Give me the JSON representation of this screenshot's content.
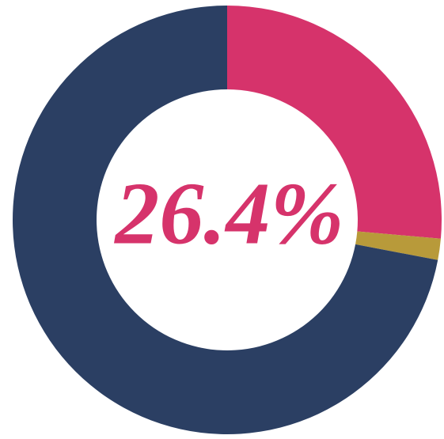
{
  "chart_data": {
    "type": "donut",
    "categories": [
      null,
      null,
      null
    ],
    "values": [
      26.4,
      1.6,
      72.0
    ],
    "value_labels": [
      "26.4%",
      null,
      null
    ],
    "colors": [
      "#d6336b",
      "#b89a3a",
      "#2b3f63"
    ]
  }
}
